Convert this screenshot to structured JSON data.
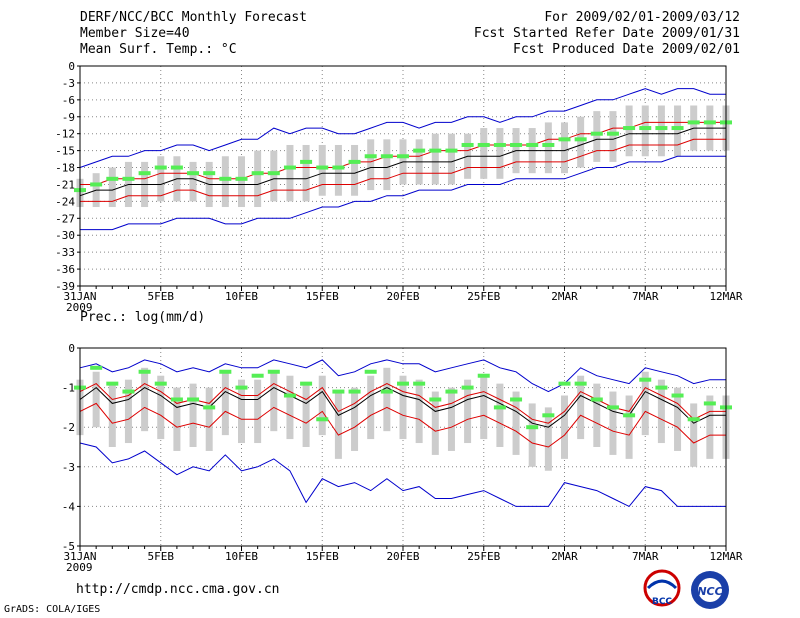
{
  "header": {
    "title": "DERF/NCC/BCC Monthly Forecast",
    "member_size": "Member Size=40",
    "variable": "Mean Surf. Temp.: °C",
    "period": "For 2009/02/01-2009/03/12",
    "refer_date": "Fcst Started Refer Date 2009/01/31",
    "produced_date": "Fcst Produced Date 2009/02/01"
  },
  "footer": {
    "url": "http://cmdp.ncc.cma.gov.cn",
    "credit": "GrADS: COLA/IGES",
    "logo_bcc_text": "BCC",
    "logo_ncc_text": "NCC"
  },
  "colors": {
    "box": "#cccccc",
    "median": "#000000",
    "quartile": "#dd0000",
    "extreme": "#0000cc",
    "observed": "#55ee55",
    "grid": "#888888"
  },
  "chart_data": [
    {
      "type": "line",
      "title": "Mean Surf. Temp.: °C",
      "x_tick_labels": [
        "31JAN",
        "5FEB",
        "10FEB",
        "15FEB",
        "20FEB",
        "25FEB",
        "2MAR",
        "7MAR",
        "12MAR"
      ],
      "x_year_label": "2009",
      "ylim": [
        -39,
        0
      ],
      "y_ticks": [
        0,
        -3,
        -6,
        -9,
        -12,
        -15,
        -18,
        -21,
        -24,
        -27,
        -30,
        -33,
        -36,
        -39
      ],
      "days": 41,
      "series": [
        {
          "name": "max",
          "values": [
            -18,
            -17,
            -16,
            -16,
            -15,
            -15,
            -14,
            -14,
            -15,
            -14,
            -13,
            -13,
            -11,
            -12,
            -11,
            -11,
            -12,
            -12,
            -11,
            -10,
            -10,
            -11,
            -10,
            -10,
            -9,
            -9,
            -10,
            -9,
            -9,
            -8,
            -8,
            -7,
            -6,
            -6,
            -5,
            -4,
            -5,
            -4,
            -4,
            -5,
            -5
          ]
        },
        {
          "name": "q75",
          "values": [
            -21,
            -21,
            -20,
            -20,
            -20,
            -19,
            -19,
            -19,
            -20,
            -20,
            -20,
            -19,
            -19,
            -18,
            -18,
            -18,
            -18,
            -17,
            -17,
            -16,
            -16,
            -16,
            -15,
            -15,
            -15,
            -14,
            -14,
            -14,
            -14,
            -13,
            -13,
            -12,
            -12,
            -11,
            -11,
            -10,
            -10,
            -10,
            -10,
            -10,
            -10
          ]
        },
        {
          "name": "median",
          "values": [
            -23,
            -22,
            -22,
            -21,
            -21,
            -21,
            -20,
            -20,
            -21,
            -21,
            -21,
            -21,
            -20,
            -20,
            -20,
            -19,
            -19,
            -19,
            -18,
            -18,
            -17,
            -17,
            -17,
            -17,
            -16,
            -16,
            -16,
            -15,
            -15,
            -15,
            -15,
            -14,
            -13,
            -13,
            -12,
            -12,
            -12,
            -12,
            -11,
            -11,
            -11
          ]
        },
        {
          "name": "q25",
          "values": [
            -24,
            -24,
            -24,
            -23,
            -23,
            -23,
            -22,
            -22,
            -23,
            -23,
            -23,
            -23,
            -22,
            -22,
            -22,
            -21,
            -21,
            -21,
            -20,
            -20,
            -19,
            -19,
            -19,
            -19,
            -18,
            -18,
            -18,
            -17,
            -17,
            -17,
            -17,
            -16,
            -15,
            -15,
            -14,
            -14,
            -14,
            -14,
            -13,
            -13,
            -13
          ]
        },
        {
          "name": "min",
          "values": [
            -29,
            -29,
            -29,
            -28,
            -28,
            -28,
            -27,
            -27,
            -27,
            -28,
            -28,
            -27,
            -27,
            -27,
            -26,
            -25,
            -25,
            -24,
            -24,
            -23,
            -23,
            -22,
            -22,
            -22,
            -21,
            -21,
            -21,
            -20,
            -20,
            -20,
            -20,
            -19,
            -18,
            -18,
            -17,
            -17,
            -17,
            -16,
            -16,
            -16,
            -16
          ]
        },
        {
          "name": "box_high",
          "values": [
            -20,
            -19,
            -18,
            -17,
            -17,
            -16,
            -16,
            -17,
            -17,
            -16,
            -16,
            -15,
            -15,
            -14,
            -14,
            -14,
            -14,
            -14,
            -13,
            -13,
            -13,
            -13,
            -12,
            -12,
            -12,
            -11,
            -11,
            -11,
            -11,
            -10,
            -10,
            -9,
            -8,
            -8,
            -7,
            -7,
            -7,
            -7,
            -7,
            -7,
            -7
          ]
        },
        {
          "name": "box_low",
          "values": [
            -25,
            -25,
            -25,
            -25,
            -25,
            -24,
            -24,
            -24,
            -25,
            -25,
            -25,
            -25,
            -24,
            -24,
            -24,
            -23,
            -23,
            -23,
            -22,
            -22,
            -21,
            -21,
            -21,
            -21,
            -20,
            -20,
            -20,
            -19,
            -19,
            -19,
            -19,
            -18,
            -17,
            -17,
            -16,
            -16,
            -16,
            -16,
            -15,
            -15,
            -15
          ]
        },
        {
          "name": "observed",
          "values": [
            -22,
            -21,
            -20,
            -20,
            -19,
            -18,
            -18,
            -19,
            -19,
            -20,
            -20,
            -19,
            -19,
            -18,
            -17,
            -18,
            -18,
            -17,
            -16,
            -16,
            -16,
            -15,
            -15,
            -15,
            -14,
            -14,
            -14,
            -14,
            -14,
            -14,
            -13,
            -13,
            -12,
            -12,
            -11,
            -11,
            -11,
            -11,
            -10,
            -10,
            -10
          ]
        }
      ]
    },
    {
      "type": "line",
      "title": "Prec.: log(mm/d)",
      "x_tick_labels": [
        "31JAN",
        "5FEB",
        "10FEB",
        "15FEB",
        "20FEB",
        "25FEB",
        "2MAR",
        "7MAR",
        "12MAR"
      ],
      "x_year_label": "2009",
      "ylim": [
        -5,
        0
      ],
      "y_ticks": [
        0,
        -1,
        -2,
        -3,
        -4,
        -5
      ],
      "days": 41,
      "series": [
        {
          "name": "max",
          "values": [
            -0.5,
            -0.4,
            -0.6,
            -0.5,
            -0.3,
            -0.4,
            -0.6,
            -0.5,
            -0.6,
            -0.4,
            -0.5,
            -0.5,
            -0.3,
            -0.4,
            -0.5,
            -0.3,
            -0.7,
            -0.6,
            -0.4,
            -0.3,
            -0.4,
            -0.4,
            -0.6,
            -0.5,
            -0.4,
            -0.3,
            -0.5,
            -0.6,
            -0.9,
            -1.1,
            -0.9,
            -0.5,
            -0.7,
            -0.8,
            -0.9,
            -0.5,
            -0.6,
            -0.7,
            -0.9,
            -0.8,
            -0.8
          ]
        },
        {
          "name": "q75",
          "values": [
            -1.1,
            -0.9,
            -1.3,
            -1.2,
            -0.9,
            -1.1,
            -1.4,
            -1.3,
            -1.4,
            -1.0,
            -1.2,
            -1.2,
            -0.9,
            -1.1,
            -1.3,
            -1.0,
            -1.6,
            -1.4,
            -1.1,
            -0.9,
            -1.1,
            -1.2,
            -1.5,
            -1.4,
            -1.2,
            -1.1,
            -1.3,
            -1.5,
            -1.8,
            -1.9,
            -1.6,
            -1.1,
            -1.3,
            -1.5,
            -1.6,
            -1.0,
            -1.2,
            -1.4,
            -1.8,
            -1.6,
            -1.6
          ]
        },
        {
          "name": "median",
          "values": [
            -1.3,
            -1.0,
            -1.4,
            -1.3,
            -1.0,
            -1.2,
            -1.5,
            -1.4,
            -1.5,
            -1.1,
            -1.3,
            -1.3,
            -1.0,
            -1.2,
            -1.4,
            -1.1,
            -1.7,
            -1.5,
            -1.2,
            -1.0,
            -1.2,
            -1.3,
            -1.6,
            -1.5,
            -1.3,
            -1.2,
            -1.4,
            -1.6,
            -1.9,
            -2.0,
            -1.7,
            -1.2,
            -1.4,
            -1.6,
            -1.7,
            -1.1,
            -1.3,
            -1.5,
            -1.9,
            -1.7,
            -1.7
          ]
        },
        {
          "name": "q25",
          "values": [
            -1.6,
            -1.4,
            -1.9,
            -1.8,
            -1.5,
            -1.7,
            -2.0,
            -1.9,
            -2.0,
            -1.6,
            -1.8,
            -1.8,
            -1.5,
            -1.7,
            -1.9,
            -1.6,
            -2.2,
            -2.0,
            -1.7,
            -1.5,
            -1.7,
            -1.8,
            -2.1,
            -2.0,
            -1.8,
            -1.7,
            -1.9,
            -2.1,
            -2.4,
            -2.5,
            -2.2,
            -1.7,
            -1.9,
            -2.1,
            -2.2,
            -1.6,
            -1.8,
            -2.0,
            -2.4,
            -2.2,
            -2.2
          ]
        },
        {
          "name": "min",
          "values": [
            -2.4,
            -2.5,
            -2.9,
            -2.8,
            -2.6,
            -2.9,
            -3.2,
            -3.0,
            -3.1,
            -2.7,
            -3.1,
            -3.0,
            -2.8,
            -3.1,
            -3.9,
            -3.3,
            -3.5,
            -3.4,
            -3.6,
            -3.3,
            -3.6,
            -3.5,
            -3.8,
            -3.8,
            -3.7,
            -3.6,
            -3.8,
            -4.0,
            -4.0,
            -4.0,
            -3.4,
            -3.5,
            -3.6,
            -3.8,
            -4.0,
            -3.5,
            -3.6,
            -4.0,
            -4.0,
            -4.0,
            -4.0
          ]
        },
        {
          "name": "box_high",
          "values": [
            -0.8,
            -0.6,
            -0.9,
            -0.8,
            -0.5,
            -0.7,
            -1.0,
            -0.9,
            -1.0,
            -0.6,
            -0.8,
            -0.8,
            -0.6,
            -0.7,
            -0.9,
            -0.7,
            -1.1,
            -1.0,
            -0.7,
            -0.5,
            -0.7,
            -0.8,
            -1.1,
            -1.0,
            -0.8,
            -0.7,
            -0.9,
            -1.1,
            -1.4,
            -1.5,
            -1.2,
            -0.7,
            -0.9,
            -1.1,
            -1.2,
            -0.6,
            -0.8,
            -1.0,
            -1.4,
            -1.2,
            -1.2
          ]
        },
        {
          "name": "box_low",
          "values": [
            -2.2,
            -2.0,
            -2.5,
            -2.4,
            -2.1,
            -2.3,
            -2.6,
            -2.5,
            -2.6,
            -2.2,
            -2.4,
            -2.4,
            -2.1,
            -2.3,
            -2.5,
            -2.2,
            -2.8,
            -2.6,
            -2.3,
            -2.1,
            -2.3,
            -2.4,
            -2.7,
            -2.6,
            -2.4,
            -2.3,
            -2.5,
            -2.7,
            -3.0,
            -3.1,
            -2.8,
            -2.3,
            -2.5,
            -2.7,
            -2.8,
            -2.2,
            -2.4,
            -2.6,
            -3.0,
            -2.8,
            -2.8
          ]
        },
        {
          "name": "observed",
          "values": [
            -1.0,
            -0.5,
            -0.9,
            -1.1,
            -0.6,
            -0.9,
            -1.3,
            -1.3,
            -1.5,
            -0.6,
            -1.0,
            -0.7,
            -0.6,
            -1.2,
            -0.9,
            -1.8,
            -1.1,
            -1.1,
            -0.6,
            -1.1,
            -0.9,
            -0.9,
            -1.3,
            -1.1,
            -1.0,
            -0.7,
            -1.5,
            -1.3,
            -2.0,
            -1.7,
            -0.9,
            -0.9,
            -1.3,
            -1.5,
            -1.7,
            -0.8,
            -1.0,
            -1.2,
            -1.8,
            -1.4,
            -1.5
          ]
        }
      ]
    }
  ]
}
